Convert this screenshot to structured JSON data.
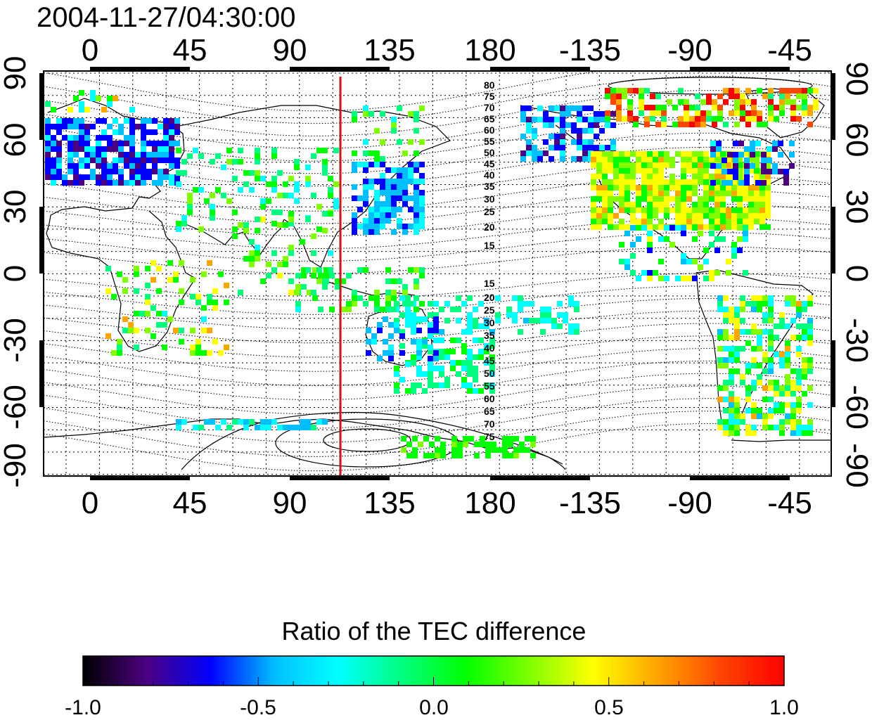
{
  "title": "2004-11-27/04:30:00",
  "map": {
    "top_lon_ticks": [
      "0",
      "45",
      "90",
      "135",
      "180",
      "-135",
      "-90",
      "-45"
    ],
    "bottom_lon_ticks": [
      "0",
      "45",
      "90",
      "135",
      "180",
      "-135",
      "-90",
      "-45"
    ],
    "left_lat_ticks": [
      "90",
      "60",
      "30",
      "0",
      "-30",
      "-60",
      "-90"
    ],
    "right_lat_ticks": [
      "90",
      "60",
      "30",
      "0",
      "-30",
      "-60",
      "-90"
    ],
    "marker_longitude": 112,
    "marker_color": "#dd1111",
    "contour_labels_north": [
      "80",
      "75",
      "70",
      "65",
      "60",
      "55",
      "50",
      "45",
      "40",
      "35",
      "30",
      "25",
      "20",
      "15"
    ],
    "contour_labels_south": [
      "15",
      "20",
      "25",
      "30",
      "35",
      "40",
      "45",
      "50",
      "55",
      "60",
      "65",
      "70",
      "75"
    ]
  },
  "colorbar": {
    "title": "Ratio of the TEC difference",
    "ticks": [
      "-1.0",
      "-0.5",
      "0.0",
      "0.5",
      "1.0"
    ],
    "range": [
      -1.0,
      1.0
    ],
    "colormap": [
      "#000000",
      "#4b0082",
      "#0000ff",
      "#00bfff",
      "#00ffff",
      "#00ff7f",
      "#00ff00",
      "#7fff00",
      "#ffff00",
      "#ffa500",
      "#ff4500",
      "#ff0000"
    ]
  }
}
